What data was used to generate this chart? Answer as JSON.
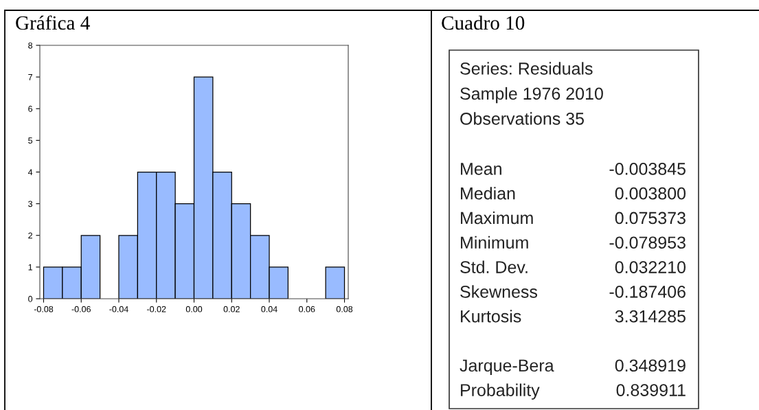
{
  "chart_data": [
    {
      "type": "histogram",
      "title": "Gráfica 4",
      "bins": [
        -0.08,
        -0.07,
        -0.06,
        -0.05,
        -0.04,
        -0.03,
        -0.02,
        -0.01,
        0.0,
        0.01,
        0.02,
        0.03,
        0.04,
        0.05,
        0.06,
        0.07,
        0.08
      ],
      "values": [
        1,
        1,
        2,
        0,
        2,
        4,
        4,
        3,
        7,
        4,
        3,
        2,
        1,
        0,
        0,
        1
      ],
      "color": "#99bbff",
      "xlim": [
        -0.082,
        0.082
      ],
      "xticks": [
        {
          "value": -0.08,
          "label": "-0.08"
        },
        {
          "value": -0.06,
          "label": "-0.06"
        },
        {
          "value": -0.04,
          "label": "-0.04"
        },
        {
          "value": -0.02,
          "label": "-0.02"
        },
        {
          "value": 0.0,
          "label": "0.00"
        },
        {
          "value": 0.02,
          "label": "0.02"
        },
        {
          "value": 0.04,
          "label": "0.04"
        },
        {
          "value": 0.06,
          "label": "0.06"
        },
        {
          "value": 0.08,
          "label": "0.08"
        }
      ],
      "ylim": [
        0,
        8
      ],
      "yticks": [
        0,
        1,
        2,
        3,
        4,
        5,
        6,
        7,
        8
      ],
      "grid": false
    },
    {
      "type": "other",
      "title": "Cuadro 10",
      "annotations": [
        "Series: Residuals",
        "Sample 1976 2010",
        "Observations 35",
        "Mean",
        "-0.003845",
        "Median",
        "0.003800",
        "Maximum",
        "0.075373",
        "Minimum",
        "-0.078953",
        "Std. Dev.",
        "0.032210",
        "Skewness",
        "-0.187406",
        "Kurtosis",
        "3.314285",
        "Jarque-Bera",
        "0.348919",
        "Probability",
        "0.839911"
      ]
    }
  ]
}
